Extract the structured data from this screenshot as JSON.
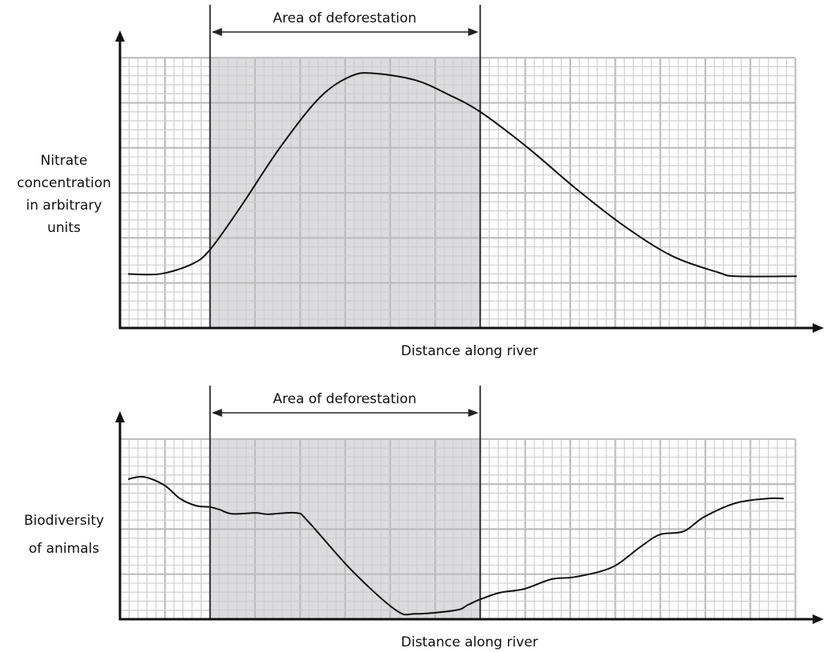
{
  "chart_data": [
    {
      "type": "line",
      "title": "",
      "xlabel": "Distance along river",
      "ylabel_lines": [
        "Nitrate",
        "concentration",
        "in arbitrary",
        "units"
      ],
      "annotation": "Area of deforestation",
      "deforestation_range": [
        2,
        8
      ],
      "xlim": [
        0,
        15
      ],
      "ylim": [
        0,
        6
      ],
      "grid": true,
      "x": [
        0.18,
        0.89,
        1.6,
        2.0,
        2.66,
        3.55,
        4.44,
        5.15,
        5.68,
        6.57,
        7.28,
        8.0,
        9.06,
        10.12,
        11.19,
        12.26,
        13.3,
        13.68,
        15.03
      ],
      "y": [
        1.2,
        1.2,
        1.42,
        1.74,
        2.66,
        4.0,
        5.12,
        5.6,
        5.65,
        5.5,
        5.19,
        4.8,
        4.0,
        3.1,
        2.27,
        1.6,
        1.23,
        1.15,
        1.15
      ]
    },
    {
      "type": "line",
      "title": "",
      "xlabel": "Distance along river",
      "ylabel_lines": [
        "Biodiversity",
        "of animals"
      ],
      "annotation": "Area of deforestation",
      "deforestation_range": [
        2,
        8
      ],
      "xlim": [
        0,
        15
      ],
      "ylim": [
        0,
        4
      ],
      "grid": true,
      "x": [
        0.18,
        0.53,
        0.98,
        1.33,
        1.69,
        2.0,
        2.22,
        2.49,
        3.02,
        3.29,
        3.91,
        4.17,
        5.15,
        6.13,
        6.57,
        7.46,
        7.73,
        8.0,
        8.44,
        8.97,
        9.59,
        10.12,
        10.92,
        11.55,
        11.99,
        12.52,
        12.97,
        13.68,
        14.39,
        14.74
      ],
      "y": [
        3.11,
        3.16,
        2.98,
        2.68,
        2.52,
        2.49,
        2.43,
        2.34,
        2.36,
        2.33,
        2.36,
        2.18,
        1.08,
        0.2,
        0.12,
        0.2,
        0.32,
        0.44,
        0.59,
        0.67,
        0.89,
        0.94,
        1.15,
        1.6,
        1.88,
        1.95,
        2.27,
        2.58,
        2.68,
        2.68
      ]
    }
  ]
}
